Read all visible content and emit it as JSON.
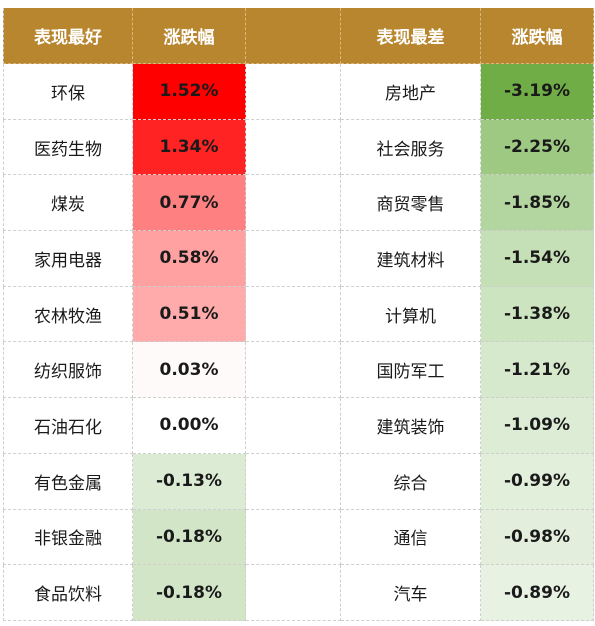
{
  "headers": {
    "best_sector": "表现最好",
    "best_change": "涨跌幅",
    "worst_sector": "表现最差",
    "worst_change": "涨跌幅"
  },
  "colors": {
    "header": "#b8862e",
    "gain_strong": "#ff0000",
    "loss_strong": "#70ad47"
  },
  "rows": [
    {
      "best": {
        "name": "环保",
        "change": "1.52%",
        "color": "#ff0000"
      },
      "worst": {
        "name": "房地产",
        "change": "-3.19%",
        "color": "#70ad47"
      }
    },
    {
      "best": {
        "name": "医药生物",
        "change": "1.34%",
        "color": "#ff2323"
      },
      "worst": {
        "name": "社会服务",
        "change": "-2.25%",
        "color": "#9dc983"
      }
    },
    {
      "best": {
        "name": "煤炭",
        "change": "0.77%",
        "color": "#ff8080"
      },
      "worst": {
        "name": "商贸零售",
        "change": "-1.85%",
        "color": "#b3d5a0"
      }
    },
    {
      "best": {
        "name": "家用电器",
        "change": "0.58%",
        "color": "#ffa1a1"
      },
      "worst": {
        "name": "建筑材料",
        "change": "-1.54%",
        "color": "#c5dfb7"
      }
    },
    {
      "best": {
        "name": "农林牧渔",
        "change": "0.51%",
        "color": "#ffabab"
      },
      "worst": {
        "name": "计算机",
        "change": "-1.38%",
        "color": "#cde4c1"
      }
    },
    {
      "best": {
        "name": "纺织服饰",
        "change": "0.03%",
        "color": "#fffafa"
      },
      "worst": {
        "name": "国防军工",
        "change": "-1.21%",
        "color": "#d7e9cd"
      }
    },
    {
      "best": {
        "name": "石油石化",
        "change": "0.00%",
        "color": "#ffffff"
      },
      "worst": {
        "name": "建筑装饰",
        "change": "-1.09%",
        "color": "#ddecd5"
      }
    },
    {
      "best": {
        "name": "有色金属",
        "change": "-0.13%",
        "color": "#dcebd3"
      },
      "worst": {
        "name": "综合",
        "change": "-0.99%",
        "color": "#e2efdb"
      }
    },
    {
      "best": {
        "name": "非银金融",
        "change": "-0.18%",
        "color": "#d2e6c7"
      },
      "worst": {
        "name": "通信",
        "change": "-0.98%",
        "color": "#e3efdc"
      }
    },
    {
      "best": {
        "name": "食品饮料",
        "change": "-0.18%",
        "color": "#d2e6c7"
      },
      "worst": {
        "name": "汽车",
        "change": "-0.89%",
        "color": "#e8f2e2"
      }
    }
  ]
}
